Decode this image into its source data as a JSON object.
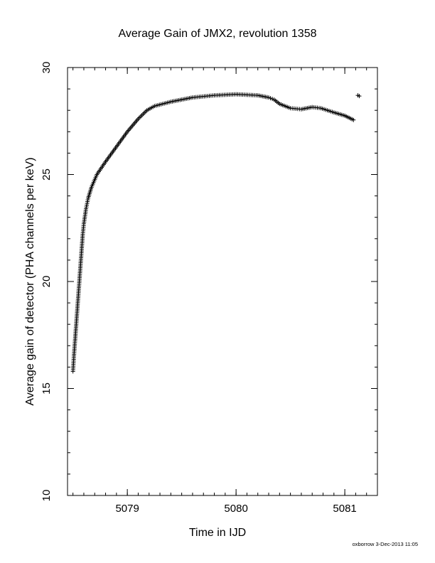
{
  "chart_data": {
    "type": "scatter",
    "title": "Average Gain of JMX2, revolution 1358",
    "xlabel": "Time in IJD",
    "ylabel": "Average gain of detector (PHA channels per keV)",
    "xlim": [
      5078.45,
      5081.3
    ],
    "ylim": [
      10,
      30
    ],
    "xticks": [
      5079,
      5080,
      5081
    ],
    "yticks": [
      10,
      15,
      20,
      25,
      30
    ],
    "grid": false,
    "marker": "+",
    "series": [
      {
        "points": [
          [
            5078.5,
            15.8
          ],
          [
            5078.51,
            16.6
          ],
          [
            5078.52,
            17.3
          ],
          [
            5078.53,
            18.0
          ],
          [
            5078.54,
            18.7
          ],
          [
            5078.55,
            19.4
          ],
          [
            5078.56,
            20.1
          ],
          [
            5078.57,
            20.8
          ],
          [
            5078.58,
            21.5
          ],
          [
            5078.59,
            22.2
          ],
          [
            5078.6,
            22.7
          ],
          [
            5078.62,
            23.4
          ],
          [
            5078.64,
            23.9
          ],
          [
            5078.67,
            24.4
          ],
          [
            5078.72,
            25.0
          ],
          [
            5078.8,
            25.6
          ],
          [
            5078.9,
            26.3
          ],
          [
            5079.0,
            27.0
          ],
          [
            5079.1,
            27.6
          ],
          [
            5079.18,
            28.0
          ],
          [
            5079.25,
            28.2
          ],
          [
            5079.4,
            28.4
          ],
          [
            5079.6,
            28.6
          ],
          [
            5079.8,
            28.7
          ],
          [
            5080.0,
            28.75
          ],
          [
            5080.2,
            28.7
          ],
          [
            5080.3,
            28.6
          ],
          [
            5080.35,
            28.5
          ],
          [
            5080.4,
            28.3
          ],
          [
            5080.5,
            28.1
          ],
          [
            5080.6,
            28.05
          ],
          [
            5080.7,
            28.15
          ],
          [
            5080.78,
            28.1
          ],
          [
            5080.9,
            27.9
          ],
          [
            5081.0,
            27.75
          ],
          [
            5081.08,
            27.55
          ],
          [
            5081.12,
            28.7
          ]
        ]
      }
    ]
  },
  "footer": "oxborrow 3-Dec-2013 11:05"
}
